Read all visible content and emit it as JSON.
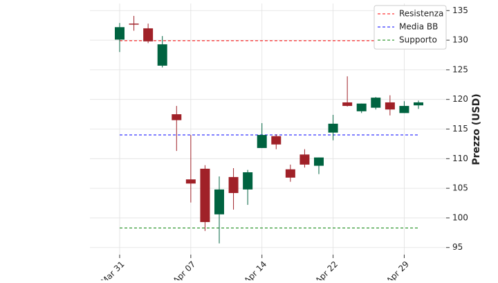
{
  "chart_data": {
    "type": "candlestick",
    "y_label": "Prezzo (USD)",
    "categories": [
      "Mar 31",
      null,
      null,
      null,
      null,
      "Apr 07",
      null,
      null,
      null,
      null,
      "Apr 14",
      null,
      null,
      null,
      null,
      "Apr 22",
      null,
      null,
      null,
      null,
      "Apr 29",
      null
    ],
    "open": [
      130.1,
      132.8,
      132.0,
      125.7,
      117.5,
      106.5,
      108.3,
      100.6,
      106.9,
      104.8,
      111.8,
      113.8,
      108.2,
      110.7,
      108.8,
      114.4,
      119.5,
      118.0,
      118.6,
      119.5,
      117.7,
      119.0
    ],
    "high": [
      132.9,
      134.1,
      132.8,
      130.7,
      118.9,
      114.0,
      108.9,
      107.0,
      108.4,
      108.1,
      116.0,
      114.1,
      109.0,
      111.6,
      110.2,
      117.4,
      123.9,
      119.3,
      120.4,
      120.7,
      119.7,
      119.8
    ],
    "low": [
      128.0,
      131.6,
      129.5,
      125.4,
      111.3,
      102.6,
      97.8,
      95.7,
      101.4,
      102.2,
      111.8,
      111.6,
      106.1,
      108.5,
      107.4,
      113.1,
      118.8,
      117.7,
      118.3,
      117.3,
      117.7,
      118.4
    ],
    "close": [
      132.2,
      132.7,
      129.8,
      129.3,
      116.5,
      105.8,
      99.3,
      104.8,
      104.2,
      107.7,
      114.0,
      112.4,
      106.8,
      109.0,
      110.2,
      115.9,
      118.9,
      119.3,
      120.3,
      118.3,
      118.9,
      119.5
    ],
    "up_color": "#006340",
    "down_color": "#a02128",
    "hlines": [
      {
        "name": "Resistenza",
        "color": "#ff0000",
        "value": 129.9
      },
      {
        "name": "Media BB",
        "color": "#0000ff",
        "value": 114.0
      },
      {
        "name": "Supporto",
        "color": "#008000",
        "value": 98.3
      }
    ],
    "ylim": [
      93.8,
      136.2
    ],
    "yticks": [
      95,
      100,
      105,
      110,
      115,
      120,
      125,
      130,
      135
    ],
    "grid": true,
    "legend_position": "upper right"
  }
}
